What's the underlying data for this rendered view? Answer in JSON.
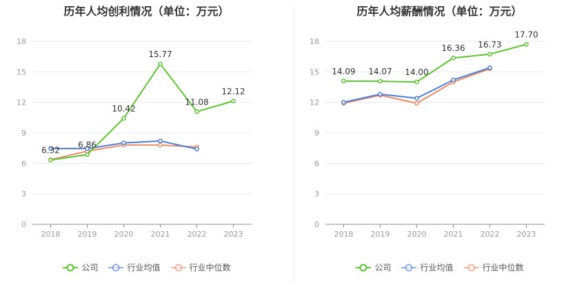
{
  "chart_data": [
    {
      "type": "line",
      "title": "历年人均创利情况（单位：万元）",
      "categories": [
        "2018",
        "2019",
        "2020",
        "2021",
        "2022",
        "2023"
      ],
      "ylim": [
        0,
        18
      ],
      "yticks": [
        "0",
        "3",
        "6",
        "9",
        "12",
        "15",
        "18"
      ],
      "grid": true,
      "legend_position": "bottom",
      "series": [
        {
          "name": "公司",
          "color": "#5ec432",
          "values": [
            6.32,
            6.86,
            10.42,
            15.77,
            11.08,
            12.12
          ],
          "labels": [
            "6.32",
            "6.86",
            "10.42",
            "15.77",
            "11.08",
            "12.12"
          ]
        },
        {
          "name": "行业均值",
          "color": "#4e7bd4",
          "values": [
            7.45,
            7.45,
            8.0,
            8.2,
            7.4,
            null
          ]
        },
        {
          "name": "行业中位数",
          "color": "#ea8b6a",
          "values": [
            6.35,
            7.2,
            7.8,
            7.8,
            7.6,
            null
          ]
        }
      ]
    },
    {
      "type": "line",
      "title": "历年人均薪酬情况（单位：万元）",
      "categories": [
        "2018",
        "2019",
        "2020",
        "2021",
        "2022",
        "2023"
      ],
      "ylim": [
        0,
        18
      ],
      "yticks": [
        "0",
        "3",
        "6",
        "9",
        "12",
        "15",
        "18"
      ],
      "grid": true,
      "legend_position": "bottom",
      "series": [
        {
          "name": "公司",
          "color": "#5ec432",
          "values": [
            14.09,
            14.07,
            14.0,
            16.36,
            16.73,
            17.7
          ],
          "labels": [
            "14.09",
            "14.07",
            "14.00",
            "16.36",
            "16.73",
            "17.70"
          ]
        },
        {
          "name": "行业均值",
          "color": "#4e7bd4",
          "values": [
            12.0,
            12.8,
            12.4,
            14.2,
            15.4,
            null
          ]
        },
        {
          "name": "行业中位数",
          "color": "#ea8b6a",
          "values": [
            11.9,
            12.7,
            11.9,
            14.0,
            15.3,
            null
          ]
        }
      ]
    }
  ]
}
